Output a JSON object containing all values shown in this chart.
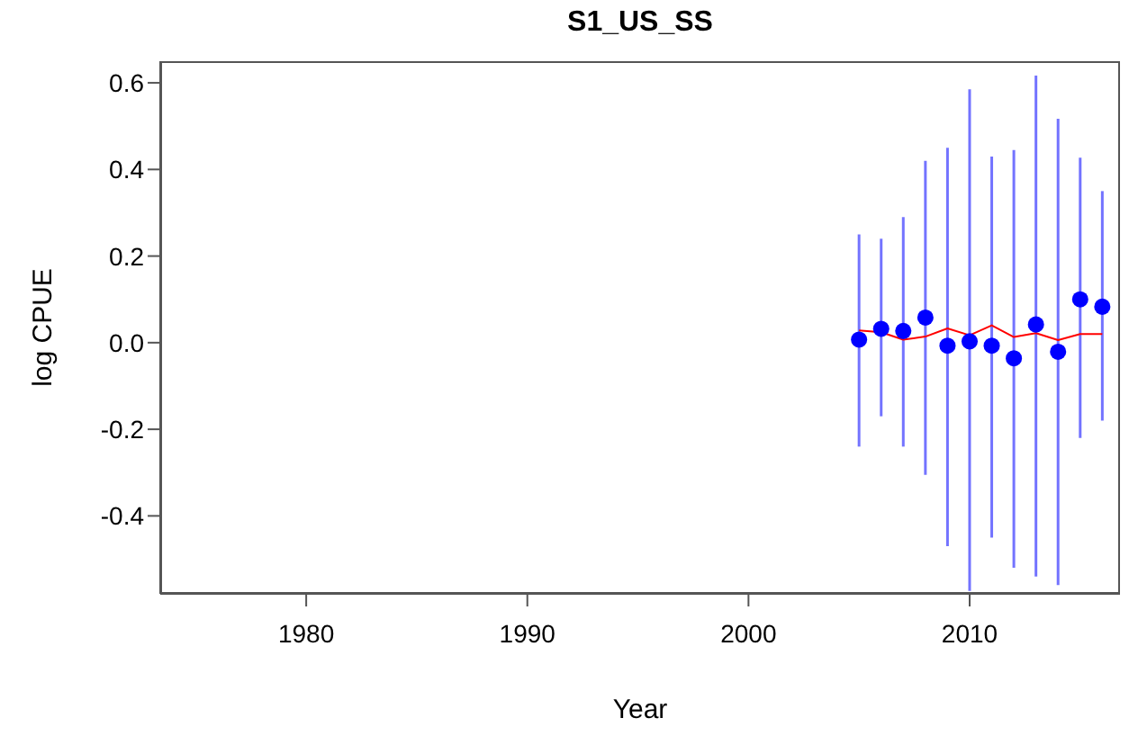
{
  "chart_data": {
    "type": "scatter",
    "title": "S1_US_SS",
    "xlabel": "Year",
    "ylabel": "log CPUE",
    "x": [
      2005,
      2006,
      2007,
      2008,
      2009,
      2010,
      2011,
      2012,
      2013,
      2014,
      2015,
      2016
    ],
    "xlim": [
      1973.4,
      2016.8
    ],
    "xticks": [
      1980,
      1990,
      2000,
      2010
    ],
    "ylim": [
      -0.58,
      0.65
    ],
    "yticks": [
      -0.4,
      -0.2,
      {
        "value": 0,
        "label": "0.0"
      },
      0.2,
      0.4,
      0.6
    ],
    "grid": false,
    "series": [
      {
        "color": "#0000ff",
        "marker": "circle",
        "values": [
          0.007,
          0.032,
          0.027,
          0.058,
          -0.007,
          0.003,
          -0.007,
          -0.036,
          0.042,
          -0.021,
          0.1,
          0.083
        ],
        "errors": [
          [
            -0.24,
            0.25
          ],
          [
            -0.17,
            0.24
          ],
          [
            -0.24,
            0.29
          ],
          [
            -0.305,
            0.42
          ],
          [
            -0.47,
            0.45
          ],
          [
            -0.573,
            0.585
          ],
          [
            -0.45,
            0.43
          ],
          [
            -0.52,
            0.445
          ],
          [
            -0.54,
            0.617
          ],
          [
            -0.56,
            0.517
          ],
          [
            -0.22,
            0.427
          ],
          [
            -0.18,
            0.35
          ]
        ]
      },
      {
        "type": "line",
        "color": "#ff0000",
        "marker": "none",
        "line_style": "solid",
        "values": [
          0.028,
          0.024,
          0.007,
          0.014,
          0.033,
          0.017,
          0.04,
          0.013,
          0.022,
          0.006,
          0.02,
          0.02
        ]
      }
    ]
  }
}
